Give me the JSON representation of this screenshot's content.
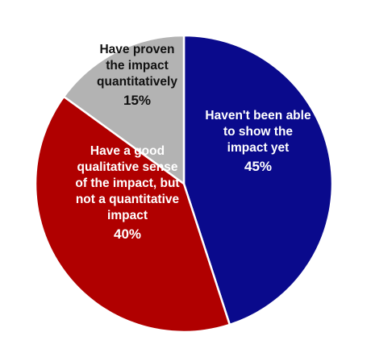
{
  "chart_data": {
    "type": "pie",
    "title": "",
    "slices": [
      {
        "label_lines": [
          "Haven't been able",
          "to show the",
          "impact yet"
        ],
        "value": 45,
        "value_label": "45%",
        "color": "#0a0a8c",
        "text_color": "#ffffff"
      },
      {
        "label_lines": [
          "Have a good",
          "qualitative sense",
          "of the impact, but",
          "not a quantitative",
          "impact"
        ],
        "value": 40,
        "value_label": "40%",
        "color": "#b00000",
        "text_color": "#ffffff"
      },
      {
        "label_lines": [
          "Have proven",
          "the impact",
          "quantitatively"
        ],
        "value": 15,
        "value_label": "15%",
        "color": "#b3b3b3",
        "text_color": "#111111"
      }
    ],
    "start_angle": "12 o'clock",
    "direction": "clockwise",
    "legend": "none"
  }
}
